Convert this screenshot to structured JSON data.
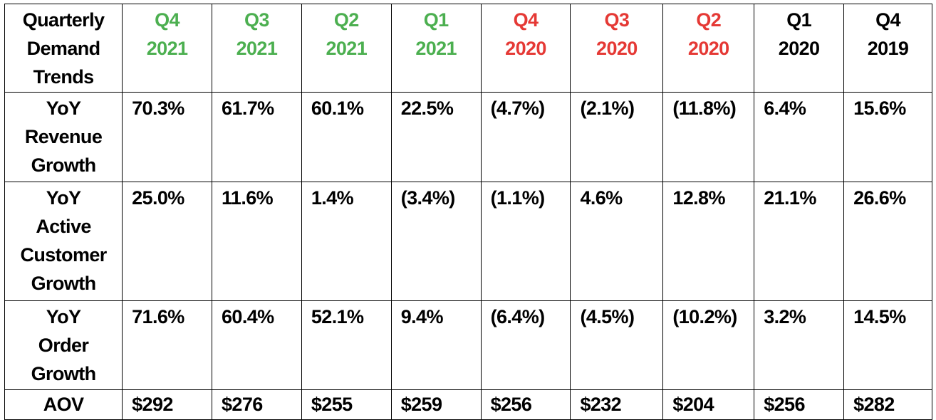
{
  "colors": {
    "green": "#4CAF50",
    "red": "#E53935",
    "black": "#000000"
  },
  "header": {
    "label_lines": [
      "Quarterly",
      "Demand",
      "Trends"
    ],
    "quarters": [
      {
        "q": "Q4",
        "year": "2021",
        "color": "green"
      },
      {
        "q": "Q3",
        "year": "2021",
        "color": "green"
      },
      {
        "q": "Q2",
        "year": "2021",
        "color": "green"
      },
      {
        "q": "Q1",
        "year": "2021",
        "color": "green"
      },
      {
        "q": "Q4",
        "year": "2020",
        "color": "red"
      },
      {
        "q": "Q3",
        "year": "2020",
        "color": "red"
      },
      {
        "q": "Q2",
        "year": "2020",
        "color": "red"
      },
      {
        "q": "Q1",
        "year": "2020",
        "color": "black"
      },
      {
        "q": "Q4",
        "year": "2019",
        "color": "black"
      }
    ]
  },
  "rows": [
    {
      "label_lines": [
        "YoY",
        "Revenue",
        "Growth"
      ],
      "values": [
        "70.3%",
        "61.7%",
        "60.1%",
        "22.5%",
        "(4.7%)",
        "(2.1%)",
        "(11.8%)",
        "6.4%",
        "15.6%"
      ]
    },
    {
      "label_lines": [
        "YoY",
        "Active",
        "Customer",
        "Growth"
      ],
      "values": [
        "25.0%",
        "11.6%",
        "1.4%",
        "(3.4%)",
        "(1.1%)",
        "4.6%",
        "12.8%",
        "21.1%",
        "26.6%"
      ]
    },
    {
      "label_lines": [
        "YoY",
        "Order",
        "Growth"
      ],
      "values": [
        "71.6%",
        "60.4%",
        "52.1%",
        "9.4%",
        "(6.4%)",
        "(4.5%)",
        "(10.2%)",
        "3.2%",
        "14.5%"
      ]
    },
    {
      "label_lines": [
        "AOV"
      ],
      "values": [
        "$292",
        "$276",
        "$255",
        "$259",
        "$256",
        "$232",
        "$204",
        "$256",
        "$282"
      ]
    }
  ]
}
